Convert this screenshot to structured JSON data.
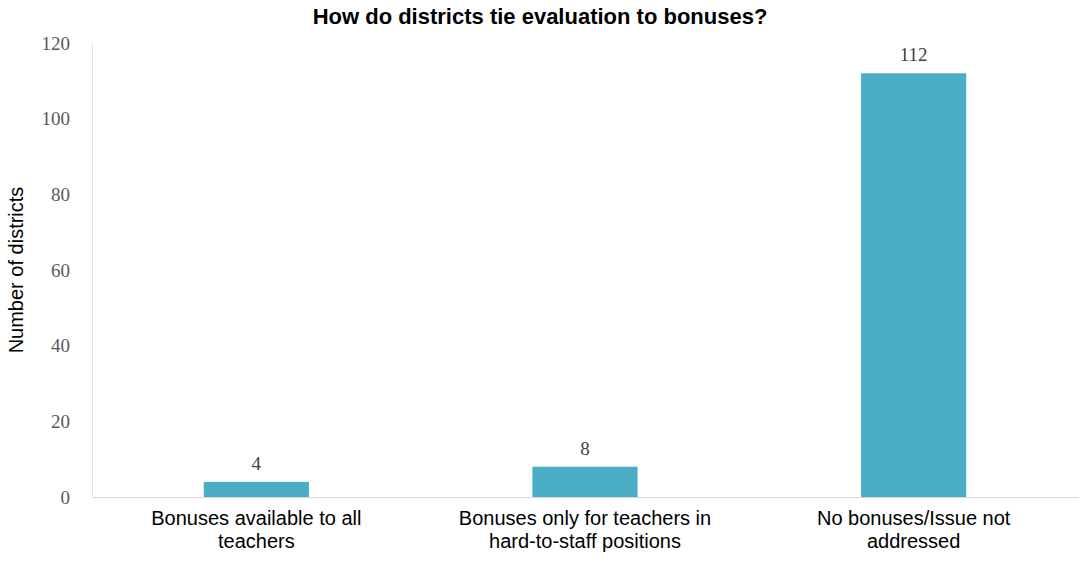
{
  "chart_data": {
    "type": "bar",
    "title": "How do districts tie evaluation to bonuses?",
    "y_label": "Number of districts",
    "categories": [
      "Bonuses available to all teachers",
      "Bonuses only for teachers in hard-to-staff positions",
      "No bonuses/Issue not addressed"
    ],
    "values": [
      4,
      8,
      112
    ],
    "color": "#4bacc6",
    "ylim": [
      0,
      120
    ],
    "yticks": [
      0,
      20,
      40,
      60,
      80,
      100,
      120
    ],
    "grid": false,
    "data_labels": true
  }
}
